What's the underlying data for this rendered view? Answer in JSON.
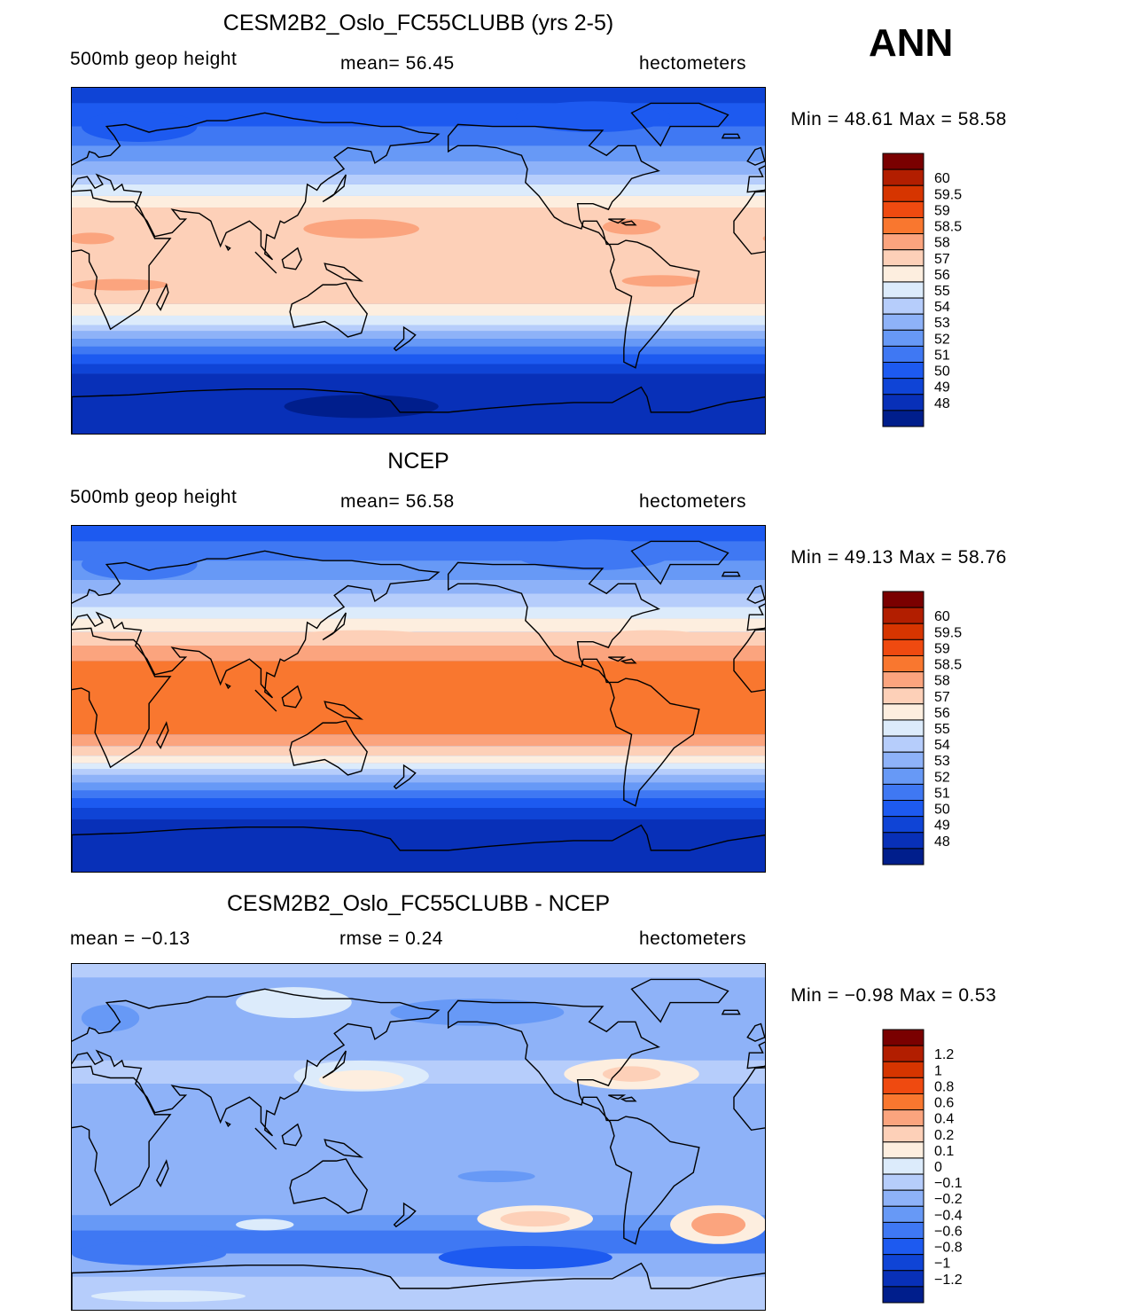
{
  "season": "ANN",
  "panels": [
    {
      "id": "model",
      "title": "CESM2B2_Oslo_FC55CLUBB (yrs 2-5)",
      "left_label": "500mb  geop  height",
      "center_label": "mean=   56.45",
      "right_label": "hectometers",
      "minmax": "Min  =    48.61  Max  =    58.58",
      "colors": {
        "bg": "#3b74f5",
        "coast": "#000000"
      }
    },
    {
      "id": "obs",
      "title": "NCEP",
      "left_label": "500mb  geop  height",
      "center_label": "mean=   56.58",
      "right_label": "hectometers",
      "minmax": "Min  =    49.13  Max  =    58.76",
      "colors": {
        "bg": "#3b74f5",
        "coast": "#000000"
      }
    },
    {
      "id": "diff",
      "title": "CESM2B2_Oslo_FC55CLUBB - NCEP",
      "left_label": "mean  =   −0.13",
      "center_label": "rmse  =     0.24",
      "right_label": "hectometers",
      "minmax": "Min  =   −0.98  Max  =      0.53",
      "colors": {
        "bg": "#b6cdfb",
        "coast": "#000000"
      }
    }
  ],
  "chart_data": [
    {
      "type": "heatmap",
      "title": "CESM2B2_Oslo_FC55CLUBB (yrs 2-5)",
      "variable": "500mb geop height",
      "units": "hectometers",
      "mean": 56.45,
      "min": 48.61,
      "max": 58.58,
      "colorbar_levels": [
        "60",
        "59.5",
        "59",
        "58.5",
        "58",
        "57",
        "56",
        "55",
        "54",
        "53",
        "52",
        "51",
        "50",
        "49",
        "48"
      ],
      "colorbar_colors": [
        "#7a0000",
        "#b21e00",
        "#d63500",
        "#ef4a10",
        "#f9772f",
        "#fba47e",
        "#fdd0b8",
        "#fdeedf",
        "#dcebfb",
        "#b6cdfb",
        "#8eb2f8",
        "#6799f6",
        "#3f78f3",
        "#1d5af0",
        "#0f44d6",
        "#0830b8",
        "#001e8c"
      ],
      "zonal_bands": [
        {
          "lat_from": 90,
          "lat_to": 82,
          "level_index": 13
        },
        {
          "lat_from": 82,
          "lat_to": 70,
          "level_index": 12
        },
        {
          "lat_from": 70,
          "lat_to": 60,
          "level_index": 11
        },
        {
          "lat_from": 60,
          "lat_to": 52,
          "level_index": 10
        },
        {
          "lat_from": 52,
          "lat_to": 45,
          "level_index": 9
        },
        {
          "lat_from": 45,
          "lat_to": 40,
          "level_index": 8
        },
        {
          "lat_from": 40,
          "lat_to": 34,
          "level_index": 7
        },
        {
          "lat_from": 34,
          "lat_to": 28,
          "level_index": 6
        },
        {
          "lat_from": 28,
          "lat_to": -22,
          "level_index": 5
        },
        {
          "lat_from": -22,
          "lat_to": -28,
          "level_index": 6
        },
        {
          "lat_from": -28,
          "lat_to": -33,
          "level_index": 7
        },
        {
          "lat_from": -33,
          "lat_to": -36,
          "level_index": 8
        },
        {
          "lat_from": -36,
          "lat_to": -40,
          "level_index": 9
        },
        {
          "lat_from": -40,
          "lat_to": -44,
          "level_index": 10
        },
        {
          "lat_from": -44,
          "lat_to": -48,
          "level_index": 11
        },
        {
          "lat_from": -48,
          "lat_to": -53,
          "level_index": 12
        },
        {
          "lat_from": -53,
          "lat_to": -58,
          "level_index": 13
        },
        {
          "lat_from": -58,
          "lat_to": -90,
          "level_index": 14
        }
      ],
      "blobs": [
        {
          "lon": 150,
          "lat": 17,
          "rx_deg": 30,
          "ry_deg": 5,
          "level_index": 4
        },
        {
          "lon": 290,
          "lat": 18,
          "rx_deg": 15,
          "ry_deg": 4,
          "level_index": 4
        },
        {
          "lon": 10,
          "lat": 12,
          "rx_deg": 12,
          "ry_deg": 3,
          "level_index": 4
        },
        {
          "lon": 25,
          "lat": -12,
          "rx_deg": 25,
          "ry_deg": 3,
          "level_index": 4
        },
        {
          "lon": 305,
          "lat": -10,
          "rx_deg": 20,
          "ry_deg": 3,
          "level_index": 4
        },
        {
          "lon": 35,
          "lat": 70,
          "rx_deg": 30,
          "ry_deg": 8,
          "level_index": 12
        },
        {
          "lon": 270,
          "lat": 75,
          "rx_deg": 40,
          "ry_deg": 8,
          "level_index": 12
        },
        {
          "lon": 150,
          "lat": -75,
          "rx_deg": 40,
          "ry_deg": 6,
          "level_index": 15
        }
      ]
    },
    {
      "type": "heatmap",
      "title": "NCEP",
      "variable": "500mb geop height",
      "units": "hectometers",
      "mean": 56.58,
      "min": 49.13,
      "max": 58.76,
      "colorbar_levels": [
        "60",
        "59.5",
        "59",
        "58.5",
        "58",
        "57",
        "56",
        "55",
        "54",
        "53",
        "52",
        "51",
        "50",
        "49",
        "48"
      ],
      "colorbar_colors": [
        "#7a0000",
        "#b21e00",
        "#d63500",
        "#ef4a10",
        "#f9772f",
        "#fba47e",
        "#fdd0b8",
        "#fdeedf",
        "#dcebfb",
        "#b6cdfb",
        "#8eb2f8",
        "#6799f6",
        "#3f78f3",
        "#1d5af0",
        "#0f44d6",
        "#0830b8",
        "#001e8c"
      ],
      "zonal_bands": [
        {
          "lat_from": 90,
          "lat_to": 82,
          "level_index": 12
        },
        {
          "lat_from": 82,
          "lat_to": 72,
          "level_index": 11
        },
        {
          "lat_from": 72,
          "lat_to": 62,
          "level_index": 10
        },
        {
          "lat_from": 62,
          "lat_to": 55,
          "level_index": 9
        },
        {
          "lat_from": 55,
          "lat_to": 48,
          "level_index": 8
        },
        {
          "lat_from": 48,
          "lat_to": 42,
          "level_index": 7
        },
        {
          "lat_from": 42,
          "lat_to": 35,
          "level_index": 6
        },
        {
          "lat_from": 35,
          "lat_to": 28,
          "level_index": 5
        },
        {
          "lat_from": 28,
          "lat_to": 20,
          "level_index": 4
        },
        {
          "lat_from": 20,
          "lat_to": -18,
          "level_index": 3
        },
        {
          "lat_from": -18,
          "lat_to": -24,
          "level_index": 4
        },
        {
          "lat_from": -24,
          "lat_to": -29,
          "level_index": 5
        },
        {
          "lat_from": -29,
          "lat_to": -33,
          "level_index": 6
        },
        {
          "lat_from": -33,
          "lat_to": -36,
          "level_index": 7
        },
        {
          "lat_from": -36,
          "lat_to": -39,
          "level_index": 8
        },
        {
          "lat_from": -39,
          "lat_to": -43,
          "level_index": 9
        },
        {
          "lat_from": -43,
          "lat_to": -47,
          "level_index": 10
        },
        {
          "lat_from": -47,
          "lat_to": -51,
          "level_index": 11
        },
        {
          "lat_from": -51,
          "lat_to": -56,
          "level_index": 12
        },
        {
          "lat_from": -56,
          "lat_to": -62,
          "level_index": 13
        },
        {
          "lat_from": -62,
          "lat_to": -90,
          "level_index": 14
        }
      ],
      "blobs": [
        {
          "lon": 35,
          "lat": 70,
          "rx_deg": 30,
          "ry_deg": 8,
          "level_index": 11
        },
        {
          "lon": 270,
          "lat": 75,
          "rx_deg": 40,
          "ry_deg": 8,
          "level_index": 11
        },
        {
          "lon": 150,
          "lat": 32,
          "rx_deg": 40,
          "ry_deg": 4,
          "level_index": 5
        },
        {
          "lon": 300,
          "lat": 32,
          "rx_deg": 30,
          "ry_deg": 4,
          "level_index": 5
        }
      ]
    },
    {
      "type": "heatmap",
      "title": "CESM2B2_Oslo_FC55CLUBB - NCEP",
      "units": "hectometers",
      "mean": -0.13,
      "rmse": 0.24,
      "min": -0.98,
      "max": 0.53,
      "colorbar_levels": [
        "1.2",
        "1",
        "0.8",
        "0.6",
        "0.4",
        "0.2",
        "0.1",
        "0",
        "−0.1",
        "−0.2",
        "−0.4",
        "−0.6",
        "−0.8",
        "−1",
        "−1.2"
      ],
      "colorbar_colors": [
        "#7a0000",
        "#b21e00",
        "#d63500",
        "#ef4a10",
        "#f9772f",
        "#fba47e",
        "#fdd0b8",
        "#fdeedf",
        "#dcebfb",
        "#b6cdfb",
        "#8eb2f8",
        "#6799f6",
        "#3f78f3",
        "#1d5af0",
        "#0f44d6",
        "#0830b8",
        "#001e8c"
      ],
      "zonal_bands": [
        {
          "lat_from": 90,
          "lat_to": 83,
          "level_index": 8
        },
        {
          "lat_from": 83,
          "lat_to": 40,
          "level_index": 9
        },
        {
          "lat_from": 40,
          "lat_to": 28,
          "level_index": 8
        },
        {
          "lat_from": 28,
          "lat_to": -40,
          "level_index": 9
        },
        {
          "lat_from": -40,
          "lat_to": -48,
          "level_index": 10
        },
        {
          "lat_from": -48,
          "lat_to": -60,
          "level_index": 11
        },
        {
          "lat_from": -60,
          "lat_to": -72,
          "level_index": 9
        },
        {
          "lat_from": -72,
          "lat_to": -90,
          "level_index": 8
        }
      ],
      "blobs": [
        {
          "lon": 150,
          "lat": 32,
          "rx_deg": 35,
          "ry_deg": 8,
          "level_index": 7
        },
        {
          "lon": 150,
          "lat": 30,
          "rx_deg": 22,
          "ry_deg": 5,
          "level_index": 6
        },
        {
          "lon": 290,
          "lat": 33,
          "rx_deg": 35,
          "ry_deg": 8,
          "level_index": 6
        },
        {
          "lon": 290,
          "lat": 33,
          "rx_deg": 15,
          "ry_deg": 4,
          "level_index": 5
        },
        {
          "lon": 115,
          "lat": 70,
          "rx_deg": 30,
          "ry_deg": 8,
          "level_index": 7
        },
        {
          "lon": 20,
          "lat": 62,
          "rx_deg": 15,
          "ry_deg": 7,
          "level_index": 10
        },
        {
          "lon": 210,
          "lat": 65,
          "rx_deg": 45,
          "ry_deg": 7,
          "level_index": 10
        },
        {
          "lon": 240,
          "lat": -42,
          "rx_deg": 30,
          "ry_deg": 7,
          "level_index": 6
        },
        {
          "lon": 240,
          "lat": -42,
          "rx_deg": 18,
          "ry_deg": 4,
          "level_index": 5
        },
        {
          "lon": 335,
          "lat": -45,
          "rx_deg": 25,
          "ry_deg": 10,
          "level_index": 6
        },
        {
          "lon": 335,
          "lat": -45,
          "rx_deg": 14,
          "ry_deg": 6,
          "level_index": 4
        },
        {
          "lon": 100,
          "lat": -45,
          "rx_deg": 15,
          "ry_deg": 3,
          "level_index": 7
        },
        {
          "lon": 235,
          "lat": -62,
          "rx_deg": 45,
          "ry_deg": 6,
          "level_index": 12
        },
        {
          "lon": 40,
          "lat": -60,
          "rx_deg": 40,
          "ry_deg": 6,
          "level_index": 11
        },
        {
          "lon": 50,
          "lat": -82,
          "rx_deg": 40,
          "ry_deg": 3,
          "level_index": 7
        },
        {
          "lon": 220,
          "lat": -20,
          "rx_deg": 20,
          "ry_deg": 3,
          "level_index": 10
        }
      ]
    }
  ]
}
